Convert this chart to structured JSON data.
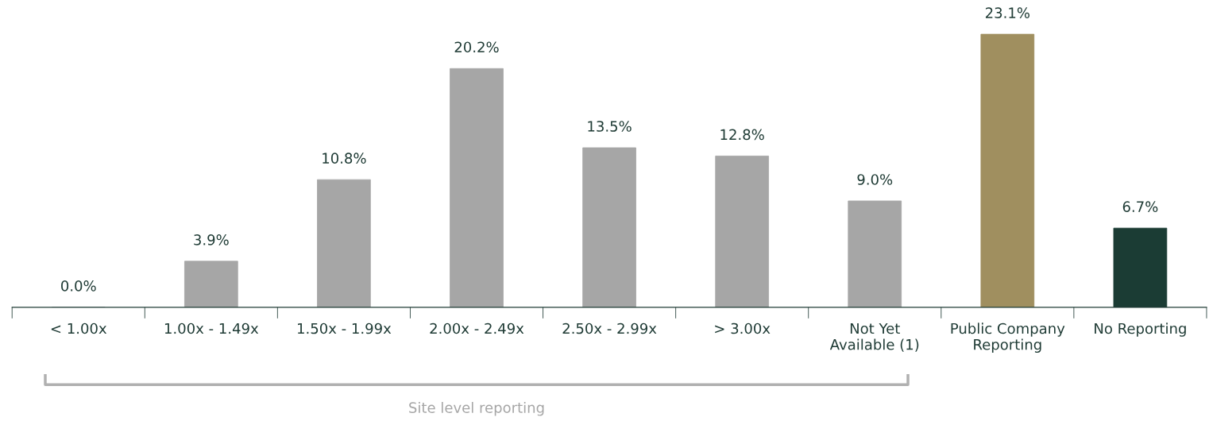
{
  "chart_data": {
    "type": "bar",
    "categories": [
      "< 1.00x",
      "1.00x - 1.49x",
      "1.50x - 1.99x",
      "2.00x - 2.49x",
      "2.50x - 2.99x",
      "> 3.00x",
      "Not Yet\nAvailable (1)",
      "Public Company\nReporting",
      "No Reporting"
    ],
    "values": [
      0.0,
      3.9,
      10.8,
      20.2,
      13.5,
      12.8,
      9.0,
      23.1,
      6.7
    ],
    "value_labels": [
      "0.0%",
      "3.9%",
      "10.8%",
      "20.2%",
      "13.5%",
      "12.8%",
      "9.0%",
      "23.1%",
      "6.7%"
    ],
    "colors": [
      "#a6a6a6",
      "#a6a6a6",
      "#a6a6a6",
      "#a6a6a6",
      "#a6a6a6",
      "#a6a6a6",
      "#a6a6a6",
      "#a08f5f",
      "#1b3c34"
    ],
    "annotations": [
      "Site level reporting"
    ],
    "grid": false,
    "legend": false
  }
}
